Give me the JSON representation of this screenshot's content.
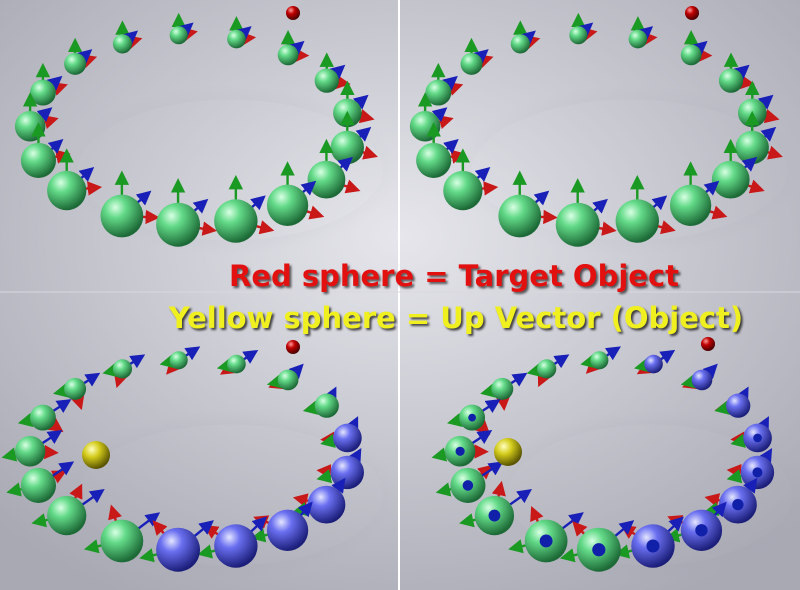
{
  "captions": {
    "target": "Red sphere = Target Object",
    "up_vector": "Yellow sphere = Up Vector (Object)"
  },
  "colors": {
    "background": "#c8c8d0",
    "green_sphere": "#4fd27a",
    "blue_sphere": "#5a5ee0",
    "red_target": "#b00000",
    "yellow_up": "#d8d020",
    "arrow_green": "#1a9a22",
    "arrow_red": "#c81818",
    "arrow_blue": "#1820b8",
    "caption_red": "#e31010",
    "caption_yellow": "#f0f020"
  },
  "panels": [
    {
      "name": "top-left",
      "up_target_visible": false
    },
    {
      "name": "top-right",
      "up_target_visible": false
    },
    {
      "name": "bottom-left",
      "up_target_visible": true
    },
    {
      "name": "bottom-right",
      "up_target_visible": true
    }
  ]
}
